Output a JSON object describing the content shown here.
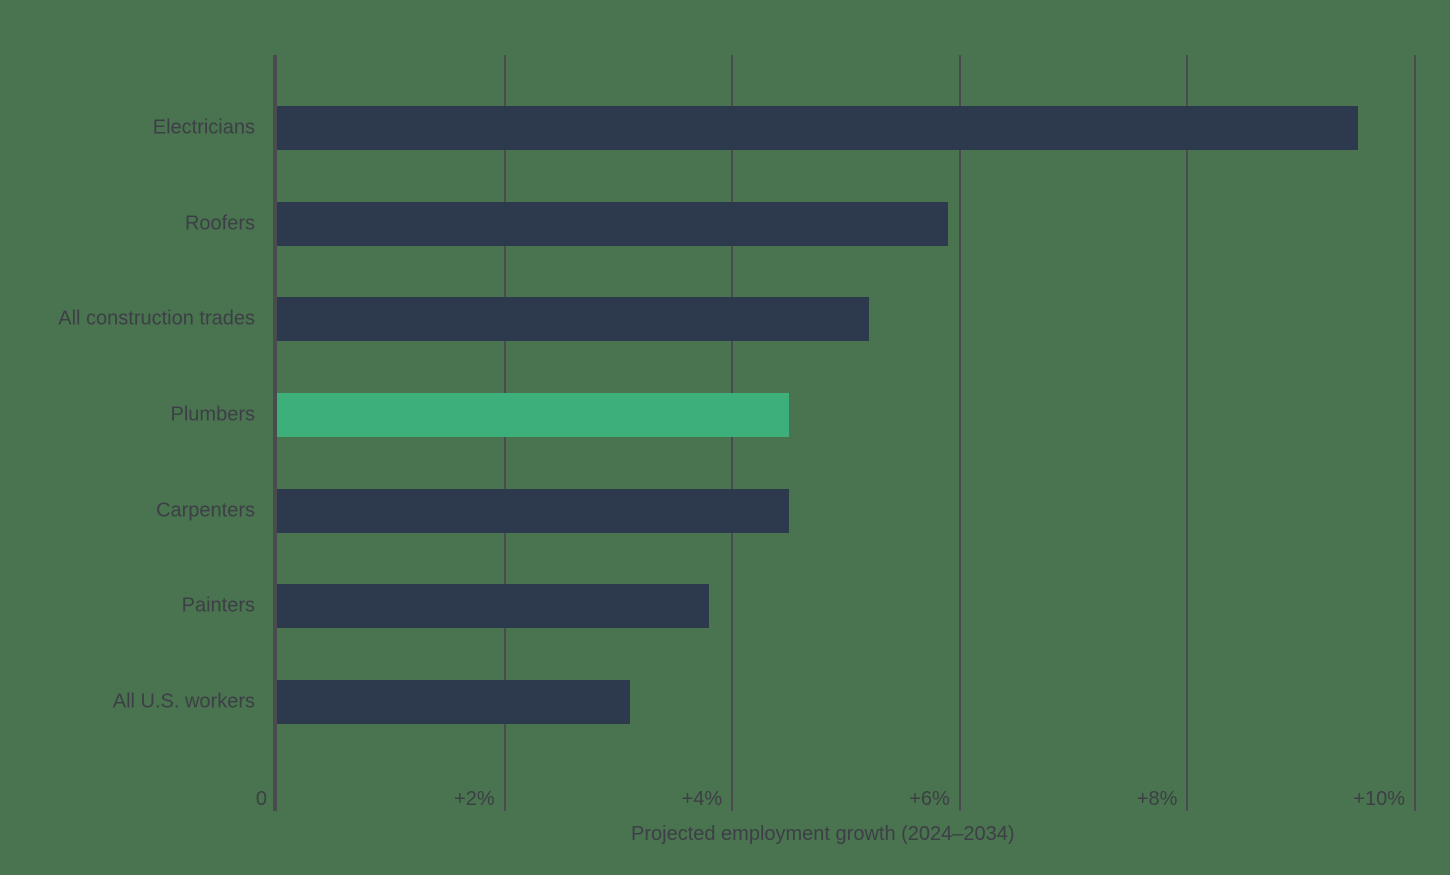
{
  "chart_data": {
    "type": "bar",
    "orientation": "horizontal",
    "title": "",
    "xlabel": "Projected employment growth (2024–2034)",
    "ylabel": "",
    "categories": [
      "Electricians",
      "Roofers",
      "All construction trades",
      "Plumbers",
      "Carpenters",
      "Painters",
      "All U.S. workers"
    ],
    "values": [
      9.5,
      5.9,
      5.2,
      4.5,
      4.5,
      3.8,
      3.1
    ],
    "highlight": "Plumbers",
    "xlim": [
      0,
      10
    ],
    "ticks": [
      {
        "value": 0,
        "label": "0"
      },
      {
        "value": 2,
        "label": "+2%"
      },
      {
        "value": 4,
        "label": "+4%"
      },
      {
        "value": 6,
        "label": "+6%"
      },
      {
        "value": 8,
        "label": "+8%"
      },
      {
        "value": 10,
        "label": "+10%"
      }
    ],
    "grid": true,
    "legend": "none",
    "colors": {
      "background": "#4a7350",
      "bar": "#2d3a4e",
      "highlight": "#3daf7a",
      "text": "#3c3f45",
      "gridline": "#4a4b4f"
    }
  }
}
